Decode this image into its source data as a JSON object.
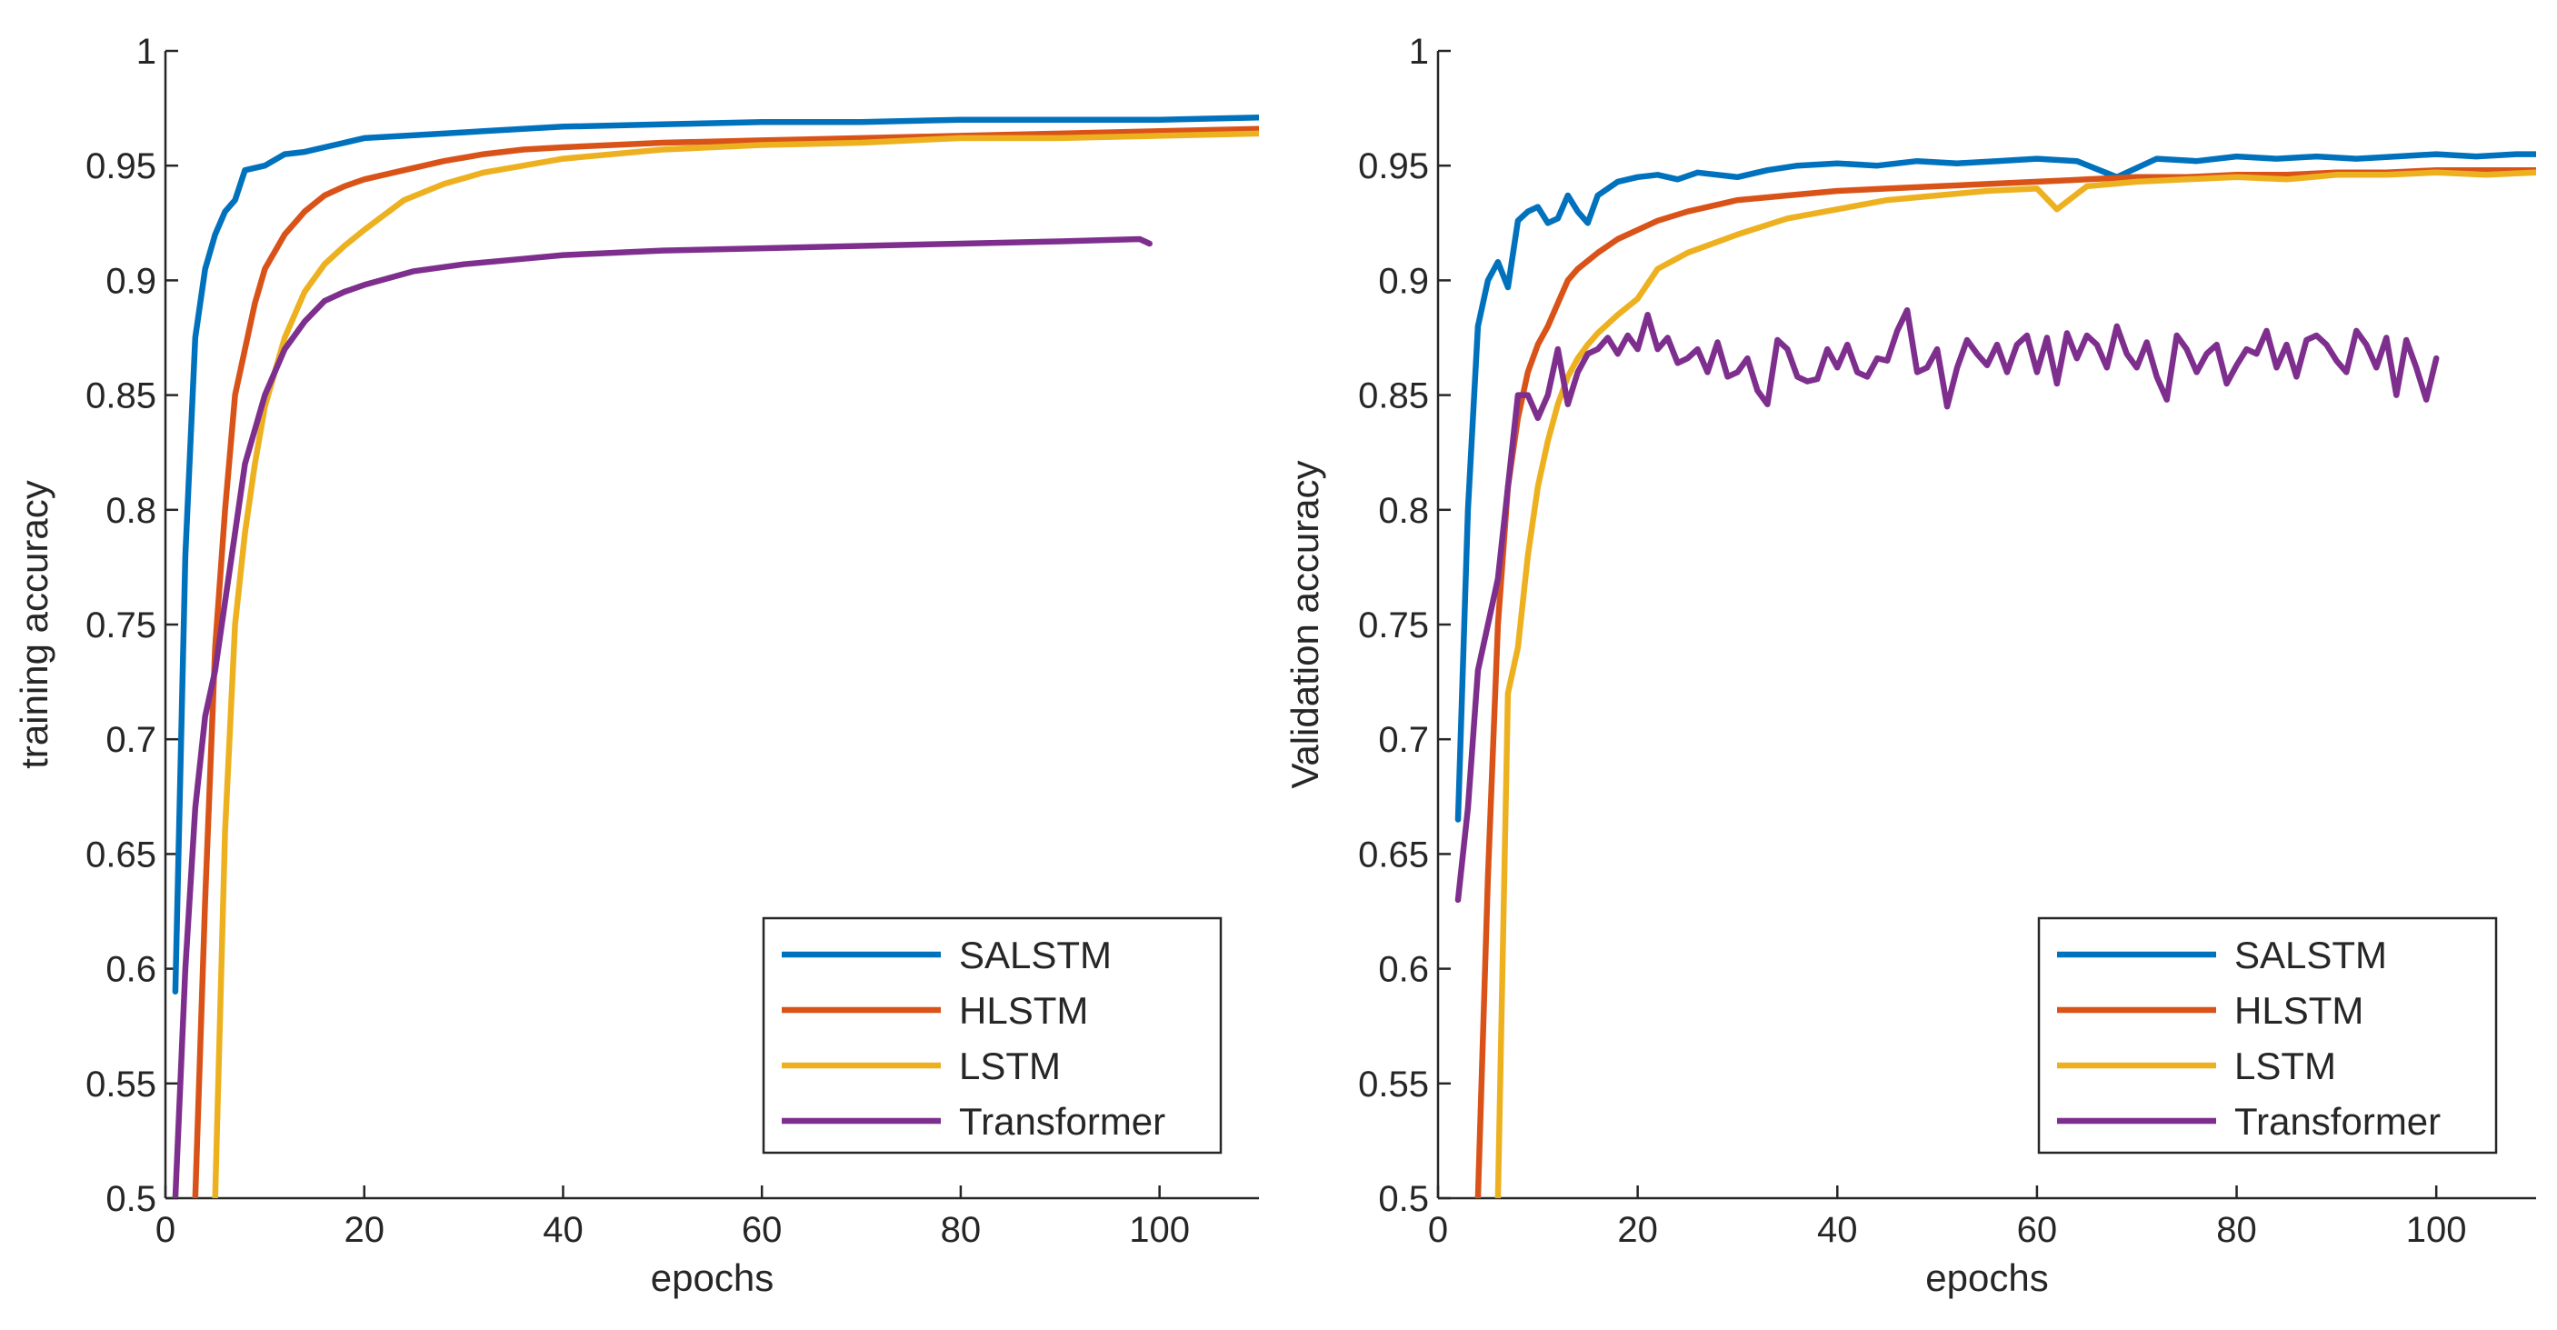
{
  "chart_data": [
    {
      "type": "line",
      "title": "",
      "xlabel": "epochs",
      "ylabel": "training accuracy",
      "xlim": [
        0,
        110
      ],
      "ylim": [
        0.5,
        1
      ],
      "xticks": [
        0,
        20,
        40,
        60,
        80,
        100
      ],
      "xtick_labels": [
        "0",
        "20",
        "40",
        "60",
        "80",
        "100"
      ],
      "yticks": [
        0.5,
        0.55,
        0.6,
        0.65,
        0.7,
        0.75,
        0.8,
        0.85,
        0.9,
        0.95,
        1
      ],
      "ytick_labels": [
        "0.5",
        "0.55",
        "0.6",
        "0.65",
        "0.7",
        "0.75",
        "0.8",
        "0.85",
        "0.9",
        "0.95",
        "1"
      ],
      "grid": false,
      "legend_position": "bottom-right",
      "series": [
        {
          "name": "SALSTM",
          "color": "#0072BD",
          "x": [
            1,
            2,
            3,
            4,
            5,
            6,
            7,
            8,
            10,
            12,
            14,
            16,
            18,
            20,
            24,
            28,
            32,
            36,
            40,
            50,
            60,
            70,
            80,
            90,
            100,
            110
          ],
          "y": [
            0.59,
            0.78,
            0.875,
            0.905,
            0.92,
            0.93,
            0.935,
            0.948,
            0.95,
            0.955,
            0.956,
            0.958,
            0.96,
            0.962,
            0.963,
            0.964,
            0.965,
            0.966,
            0.967,
            0.968,
            0.969,
            0.969,
            0.97,
            0.97,
            0.97,
            0.971
          ]
        },
        {
          "name": "HLSTM",
          "color": "#D95319",
          "x": [
            3,
            4,
            5,
            6,
            7,
            8,
            9,
            10,
            12,
            14,
            16,
            18,
            20,
            24,
            28,
            32,
            36,
            40,
            50,
            60,
            70,
            80,
            90,
            100,
            110
          ],
          "y": [
            0.5,
            0.63,
            0.74,
            0.8,
            0.85,
            0.87,
            0.89,
            0.905,
            0.92,
            0.93,
            0.937,
            0.941,
            0.944,
            0.948,
            0.952,
            0.955,
            0.957,
            0.958,
            0.96,
            0.961,
            0.962,
            0.963,
            0.964,
            0.965,
            0.966
          ]
        },
        {
          "name": "LSTM",
          "color": "#EDB120",
          "x": [
            5,
            6,
            7,
            8,
            9,
            10,
            11,
            12,
            14,
            16,
            18,
            20,
            24,
            28,
            32,
            36,
            40,
            50,
            60,
            70,
            80,
            90,
            100,
            110
          ],
          "y": [
            0.5,
            0.66,
            0.75,
            0.79,
            0.82,
            0.845,
            0.86,
            0.875,
            0.895,
            0.907,
            0.915,
            0.922,
            0.935,
            0.942,
            0.947,
            0.95,
            0.953,
            0.957,
            0.959,
            0.96,
            0.962,
            0.962,
            0.963,
            0.964
          ]
        },
        {
          "name": "Transformer",
          "color": "#7E2F8E",
          "x": [
            1,
            2,
            3,
            4,
            5,
            6,
            7,
            8,
            10,
            12,
            14,
            16,
            18,
            20,
            25,
            30,
            35,
            40,
            50,
            60,
            70,
            80,
            90,
            98,
            99
          ],
          "y": [
            0.5,
            0.6,
            0.67,
            0.71,
            0.73,
            0.76,
            0.79,
            0.82,
            0.85,
            0.87,
            0.882,
            0.891,
            0.895,
            0.898,
            0.904,
            0.907,
            0.909,
            0.911,
            0.913,
            0.914,
            0.915,
            0.916,
            0.917,
            0.918,
            0.916
          ]
        }
      ]
    },
    {
      "type": "line",
      "title": "",
      "xlabel": "epochs",
      "ylabel": "Validation  accuracy",
      "xlim": [
        0,
        110
      ],
      "ylim": [
        0.5,
        1
      ],
      "xticks": [
        0,
        20,
        40,
        60,
        80,
        100
      ],
      "xtick_labels": [
        "0",
        "20",
        "40",
        "60",
        "80",
        "100"
      ],
      "yticks": [
        0.5,
        0.55,
        0.6,
        0.65,
        0.7,
        0.75,
        0.8,
        0.85,
        0.9,
        0.95,
        1
      ],
      "ytick_labels": [
        "0.5",
        "0.55",
        "0.6",
        "0.65",
        "0.7",
        "0.75",
        "0.8",
        "0.85",
        "0.9",
        "0.95",
        "1"
      ],
      "grid": false,
      "legend_position": "bottom-right",
      "series": [
        {
          "name": "SALSTM",
          "color": "#0072BD",
          "x": [
            2,
            3,
            4,
            5,
            6,
            7,
            8,
            9,
            10,
            11,
            12,
            13,
            14,
            15,
            16,
            18,
            20,
            22,
            24,
            26,
            28,
            30,
            33,
            36,
            40,
            44,
            48,
            52,
            56,
            60,
            64,
            68,
            72,
            76,
            80,
            84,
            88,
            92,
            96,
            100,
            104,
            108,
            110
          ],
          "y": [
            0.665,
            0.8,
            0.88,
            0.9,
            0.908,
            0.897,
            0.926,
            0.93,
            0.932,
            0.925,
            0.927,
            0.937,
            0.93,
            0.925,
            0.937,
            0.943,
            0.945,
            0.946,
            0.944,
            0.947,
            0.946,
            0.945,
            0.948,
            0.95,
            0.951,
            0.95,
            0.952,
            0.951,
            0.952,
            0.953,
            0.952,
            0.945,
            0.953,
            0.952,
            0.954,
            0.953,
            0.954,
            0.953,
            0.954,
            0.955,
            0.954,
            0.955,
            0.955
          ]
        },
        {
          "name": "HLSTM",
          "color": "#D95319",
          "x": [
            4,
            5,
            6,
            7,
            8,
            9,
            10,
            11,
            12,
            13,
            14,
            16,
            18,
            20,
            22,
            25,
            30,
            35,
            40,
            45,
            50,
            55,
            60,
            65,
            70,
            75,
            80,
            85,
            90,
            95,
            100,
            105,
            110
          ],
          "y": [
            0.5,
            0.64,
            0.75,
            0.81,
            0.84,
            0.86,
            0.872,
            0.88,
            0.89,
            0.9,
            0.905,
            0.912,
            0.918,
            0.922,
            0.926,
            0.93,
            0.935,
            0.937,
            0.939,
            0.94,
            0.941,
            0.942,
            0.943,
            0.944,
            0.945,
            0.945,
            0.946,
            0.946,
            0.947,
            0.947,
            0.948,
            0.948,
            0.948
          ]
        },
        {
          "name": "LSTM",
          "color": "#EDB120",
          "x": [
            6,
            7,
            8,
            9,
            10,
            11,
            12,
            13,
            14,
            15,
            16,
            18,
            20,
            22,
            25,
            30,
            35,
            40,
            45,
            50,
            55,
            60,
            62,
            65,
            70,
            75,
            80,
            85,
            90,
            95,
            100,
            105,
            110
          ],
          "y": [
            0.5,
            0.72,
            0.74,
            0.78,
            0.81,
            0.83,
            0.846,
            0.858,
            0.866,
            0.872,
            0.877,
            0.885,
            0.892,
            0.905,
            0.912,
            0.92,
            0.927,
            0.931,
            0.935,
            0.937,
            0.939,
            0.94,
            0.931,
            0.941,
            0.943,
            0.944,
            0.945,
            0.944,
            0.946,
            0.946,
            0.947,
            0.946,
            0.947
          ]
        },
        {
          "name": "Transformer",
          "color": "#7E2F8E",
          "x": [
            2,
            3,
            4,
            5,
            6,
            7,
            8,
            9,
            10,
            11,
            12,
            13,
            14,
            15,
            16,
            17,
            18,
            19,
            20,
            21,
            22,
            23,
            24,
            25,
            26,
            27,
            28,
            29,
            30,
            31,
            32,
            33,
            34,
            35,
            36,
            37,
            38,
            39,
            40,
            41,
            42,
            43,
            44,
            45,
            46,
            47,
            48,
            49,
            50,
            51,
            52,
            53,
            54,
            55,
            56,
            57,
            58,
            59,
            60,
            61,
            62,
            63,
            64,
            65,
            66,
            67,
            68,
            69,
            70,
            71,
            72,
            73,
            74,
            75,
            76,
            77,
            78,
            79,
            80,
            81,
            82,
            83,
            84,
            85,
            86,
            87,
            88,
            89,
            90,
            91,
            92,
            93,
            94,
            95,
            96,
            97,
            98,
            99,
            100
          ],
          "y": [
            0.63,
            0.67,
            0.73,
            0.75,
            0.77,
            0.81,
            0.85,
            0.85,
            0.84,
            0.85,
            0.87,
            0.846,
            0.86,
            0.868,
            0.87,
            0.875,
            0.868,
            0.876,
            0.87,
            0.885,
            0.87,
            0.875,
            0.864,
            0.866,
            0.87,
            0.86,
            0.873,
            0.858,
            0.86,
            0.866,
            0.852,
            0.846,
            0.874,
            0.87,
            0.858,
            0.856,
            0.857,
            0.87,
            0.862,
            0.872,
            0.86,
            0.858,
            0.866,
            0.865,
            0.878,
            0.887,
            0.86,
            0.862,
            0.87,
            0.845,
            0.862,
            0.874,
            0.868,
            0.863,
            0.872,
            0.86,
            0.872,
            0.876,
            0.86,
            0.875,
            0.855,
            0.877,
            0.866,
            0.876,
            0.872,
            0.862,
            0.88,
            0.868,
            0.862,
            0.873,
            0.858,
            0.848,
            0.876,
            0.87,
            0.86,
            0.868,
            0.872,
            0.855,
            0.863,
            0.87,
            0.868,
            0.878,
            0.862,
            0.872,
            0.858,
            0.874,
            0.876,
            0.872,
            0.865,
            0.86,
            0.878,
            0.872,
            0.862,
            0.875,
            0.85,
            0.874,
            0.862,
            0.848,
            0.866
          ]
        }
      ]
    }
  ]
}
